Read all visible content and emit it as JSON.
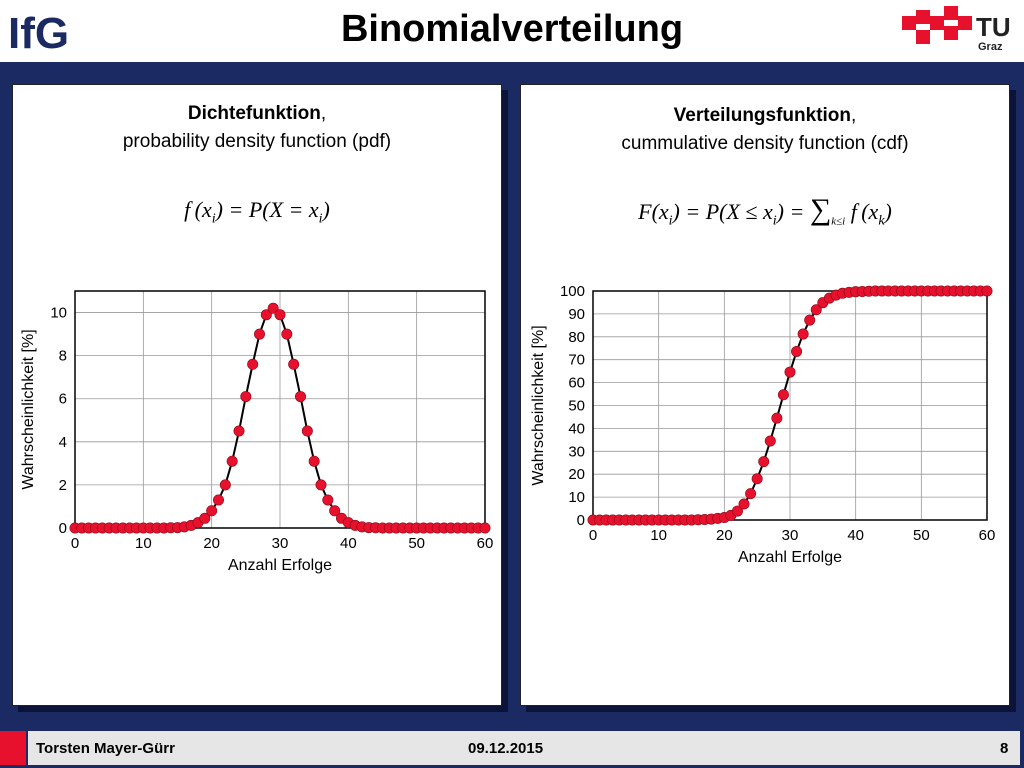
{
  "title": "Binomialverteilung",
  "logos": {
    "left": "IfG",
    "right_main": "TU",
    "right_sub": "Graz"
  },
  "panels": [
    {
      "heading_bold": "Dichtefunktion",
      "heading_rest": ",",
      "subheading": "probability density function (pdf)"
    },
    {
      "heading_bold": "Verteilungsfunktion",
      "heading_rest": ",",
      "subheading": "cummulative density function (cdf)"
    }
  ],
  "footer": {
    "author": "Torsten Mayer-Gürr",
    "date": "09.12.2015",
    "page": "8"
  },
  "colors": {
    "marker": "#e8112d",
    "line": "#000000",
    "background": "#1b2a63",
    "accent": "#e8112d"
  },
  "chart_data": [
    {
      "type": "line",
      "xlabel": "Anzahl Erfolge",
      "ylabel": "Wahrscheinlichkeit [%]",
      "xlim": [
        0,
        60
      ],
      "ylim": [
        0,
        11
      ],
      "xticks": [
        0,
        10,
        20,
        30,
        40,
        50,
        60
      ],
      "yticks": [
        0,
        2,
        4,
        6,
        8,
        10
      ],
      "grid": true,
      "x": [
        0,
        1,
        2,
        3,
        4,
        5,
        6,
        7,
        8,
        9,
        10,
        11,
        12,
        13,
        14,
        15,
        16,
        17,
        18,
        19,
        20,
        21,
        22,
        23,
        24,
        25,
        26,
        27,
        28,
        29,
        30,
        31,
        32,
        33,
        34,
        35,
        36,
        37,
        38,
        39,
        40,
        41,
        42,
        43,
        44,
        45,
        46,
        47,
        48,
        49,
        50,
        51,
        52,
        53,
        54,
        55,
        56,
        57,
        58,
        59,
        60
      ],
      "values": [
        0,
        0,
        0,
        0,
        0,
        0,
        0,
        0,
        0,
        0,
        0,
        0,
        0,
        0,
        0.01,
        0.02,
        0.05,
        0.12,
        0.25,
        0.45,
        0.8,
        1.3,
        2.0,
        3.1,
        4.5,
        6.1,
        7.6,
        9.0,
        9.9,
        10.2,
        9.9,
        9.0,
        7.6,
        6.1,
        4.5,
        3.1,
        2.0,
        1.3,
        0.8,
        0.45,
        0.25,
        0.12,
        0.05,
        0.02,
        0.01,
        0,
        0,
        0,
        0,
        0,
        0,
        0,
        0,
        0,
        0,
        0,
        0,
        0,
        0,
        0,
        0
      ]
    },
    {
      "type": "line",
      "xlabel": "Anzahl Erfolge",
      "ylabel": "Wahrscheinlichkeit [%]",
      "xlim": [
        0,
        60
      ],
      "ylim": [
        0,
        100
      ],
      "xticks": [
        0,
        10,
        20,
        30,
        40,
        50,
        60
      ],
      "yticks": [
        0,
        10,
        20,
        30,
        40,
        50,
        60,
        70,
        80,
        90,
        100
      ],
      "grid": true,
      "x": [
        0,
        1,
        2,
        3,
        4,
        5,
        6,
        7,
        8,
        9,
        10,
        11,
        12,
        13,
        14,
        15,
        16,
        17,
        18,
        19,
        20,
        21,
        22,
        23,
        24,
        25,
        26,
        27,
        28,
        29,
        30,
        31,
        32,
        33,
        34,
        35,
        36,
        37,
        38,
        39,
        40,
        41,
        42,
        43,
        44,
        45,
        46,
        47,
        48,
        49,
        50,
        51,
        52,
        53,
        54,
        55,
        56,
        57,
        58,
        59,
        60
      ],
      "values": [
        0,
        0,
        0,
        0,
        0,
        0,
        0,
        0,
        0,
        0,
        0,
        0,
        0,
        0,
        0,
        0,
        0.1,
        0.2,
        0.4,
        0.7,
        1.1,
        2.0,
        3.9,
        7.0,
        11.5,
        18.0,
        25.5,
        34.5,
        44.5,
        54.7,
        64.6,
        73.6,
        81.2,
        87.3,
        91.8,
        94.9,
        96.9,
        98.2,
        99.0,
        99.4,
        99.7,
        99.8,
        99.9,
        100,
        100,
        100,
        100,
        100,
        100,
        100,
        100,
        100,
        100,
        100,
        100,
        100,
        100,
        100,
        100,
        100,
        100
      ]
    }
  ]
}
